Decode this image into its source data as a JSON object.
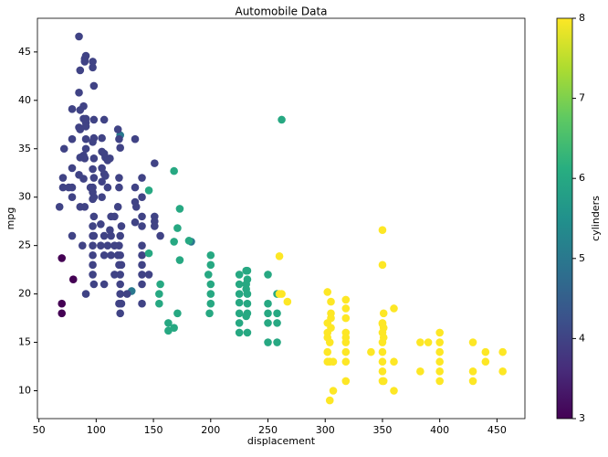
{
  "chart_data": {
    "type": "scatter",
    "title": "Automobile Data",
    "x_label": "displacement",
    "y_label": "mpg",
    "colorbar_label": "cylinders",
    "colormap": "viridis",
    "xlim": [
      48.7,
      474.4
    ],
    "xticks": [
      50,
      100,
      150,
      200,
      250,
      300,
      350,
      400,
      450
    ],
    "ylim": [
      7.12,
      48.48
    ],
    "yticks": [
      10,
      15,
      20,
      25,
      30,
      35,
      40,
      45
    ],
    "clim": [
      3,
      8
    ],
    "cticks": [
      3,
      4,
      5,
      6,
      7,
      8
    ],
    "x": [
      70,
      70,
      80,
      70,
      121,
      131,
      183,
      85,
      91,
      90,
      90,
      97,
      97,
      86,
      98,
      85,
      89,
      79,
      86,
      91,
      89,
      98,
      107,
      91,
      91,
      85,
      119,
      86,
      105,
      120,
      98,
      134,
      91,
      79,
      97,
      72,
      91,
      121,
      105,
      107,
      89,
      108,
      86,
      90,
      98,
      112,
      110,
      151,
      79,
      105,
      97,
      107,
      85,
      98,
      120,
      71,
      140,
      89,
      105,
      71,
      79,
      76,
      97,
      110,
      120,
      134,
      97,
      98,
      79,
      105,
      140,
      151,
      97,
      135,
      86,
      68,
      113,
      116,
      98,
      140,
      151,
      122,
      97,
      140,
      113,
      97,
      79,
      121,
      98,
      156,
      107,
      120,
      97,
      110,
      116,
      140,
      88,
      104,
      121,
      113,
      97,
      107,
      140,
      119,
      140,
      97,
      120,
      122,
      116,
      121,
      140,
      146,
      97,
      98,
      121,
      107,
      140,
      91,
      121,
      120,
      122,
      121,
      140,
      151,
      104,
      112,
      134,
      134,
      119,
      90,
      95,
      108,
      127,
      262,
      168,
      146,
      173,
      171,
      181,
      173,
      200,
      146,
      168,
      225,
      231,
      232,
      200,
      250,
      200,
      198,
      225,
      231,
      232,
      250,
      250,
      258,
      225,
      232,
      200,
      200,
      199,
      225,
      231,
      258,
      250,
      232,
      250,
      258,
      225,
      171,
      156,
      163,
      163,
      168,
      155,
      155,
      231,
      225,
      258,
      232,
      225,
      232,
      260,
      350,
      350,
      267,
      262,
      260,
      302,
      305,
      318,
      318,
      351,
      305,
      360,
      302,
      318,
      350,
      351,
      302,
      318,
      350,
      400,
      304,
      318,
      350,
      383,
      390,
      429,
      400,
      302,
      318,
      340,
      350,
      400,
      440,
      455,
      302,
      304,
      318,
      350,
      360,
      400,
      440,
      307,
      360,
      304,
      307,
      318,
      350,
      351,
      383,
      400,
      429,
      455,
      350,
      400,
      429,
      305,
      302,
      318,
      351,
      305,
      350
    ],
    "y": [
      18,
      19,
      21.5,
      23.7,
      36.4,
      20.3,
      25.4,
      46.6,
      44.6,
      44.3,
      44,
      44,
      43.4,
      43.1,
      41.5,
      40.8,
      39.4,
      39.1,
      39,
      38.1,
      38.1,
      38,
      38,
      37.7,
      37.3,
      37.2,
      37,
      37,
      36.1,
      36,
      36.1,
      36,
      36,
      36,
      35.7,
      35,
      35,
      35.1,
      34.7,
      34.5,
      34.3,
      34.1,
      34.1,
      34,
      34,
      34,
      33.8,
      33.5,
      33,
      33,
      32.9,
      32.4,
      32.3,
      32,
      32,
      32,
      32,
      31.9,
      31.6,
      31,
      31,
      31,
      31,
      31,
      31,
      31,
      30.5,
      30,
      30,
      30,
      30,
      28,
      29.8,
      29,
      29,
      29,
      28,
      28,
      28,
      28,
      27.5,
      27,
      27,
      27,
      26,
      26,
      26,
      26,
      26,
      26,
      26,
      25,
      25,
      25,
      25,
      25,
      25,
      25,
      24,
      24,
      24,
      24,
      24,
      24,
      23,
      23,
      23,
      23,
      22,
      22,
      22,
      22,
      22,
      21,
      21,
      21,
      21,
      20,
      20,
      19,
      19,
      18,
      19,
      27,
      27.2,
      26.6,
      29.5,
      27.4,
      29,
      29,
      31,
      32.2,
      20,
      38,
      32.7,
      30.7,
      28.8,
      26.8,
      25.5,
      23.5,
      24,
      24.2,
      25.4,
      22,
      22.4,
      22.4,
      23,
      22,
      21,
      22,
      20,
      21,
      21.5,
      19,
      18,
      18,
      18,
      19,
      20,
      19,
      18,
      17,
      17.7,
      17,
      17,
      16,
      15,
      15,
      16,
      18,
      21,
      17,
      16.2,
      16.5,
      19,
      20,
      20.5,
      19.1,
      20,
      20,
      21,
      18,
      23.9,
      26.6,
      23,
      19.2,
      20,
      20,
      20.2,
      19.2,
      19.4,
      18.5,
      18,
      18,
      18.5,
      17,
      17.5,
      17,
      16.5,
      16,
      16,
      16,
      16,
      15,
      15,
      15,
      15,
      15,
      15,
      15,
      14,
      14,
      14,
      14,
      14,
      14,
      14,
      13,
      13,
      13,
      13,
      13,
      13,
      13,
      10,
      10,
      9,
      13,
      11,
      12,
      11,
      12,
      12,
      12,
      12,
      11,
      11,
      11,
      17.5,
      15.5,
      15.5,
      15.5,
      16.5,
      16.9
    ],
    "c": [
      3,
      3,
      3,
      3,
      5,
      5,
      5,
      4,
      4,
      4,
      4,
      4,
      4,
      4,
      4,
      4,
      4,
      4,
      4,
      4,
      4,
      4,
      4,
      4,
      4,
      4,
      4,
      4,
      4,
      4,
      4,
      4,
      4,
      4,
      4,
      4,
      4,
      4,
      4,
      4,
      4,
      4,
      4,
      4,
      4,
      4,
      4,
      4,
      4,
      4,
      4,
      4,
      4,
      4,
      4,
      4,
      4,
      4,
      4,
      4,
      4,
      4,
      4,
      4,
      4,
      4,
      4,
      4,
      4,
      4,
      4,
      4,
      4,
      4,
      4,
      4,
      4,
      4,
      4,
      4,
      4,
      4,
      4,
      4,
      4,
      4,
      4,
      4,
      4,
      4,
      4,
      4,
      4,
      4,
      4,
      4,
      4,
      4,
      4,
      4,
      4,
      4,
      4,
      4,
      4,
      4,
      4,
      4,
      4,
      4,
      4,
      4,
      4,
      4,
      4,
      4,
      4,
      4,
      4,
      4,
      4,
      4,
      4,
      4,
      4,
      4,
      4,
      4,
      4,
      4,
      4,
      4,
      4,
      6,
      6,
      6,
      6,
      6,
      6,
      6,
      6,
      6,
      6,
      6,
      6,
      6,
      6,
      6,
      6,
      6,
      6,
      6,
      6,
      6,
      6,
      6,
      6,
      6,
      6,
      6,
      6,
      6,
      6,
      6,
      6,
      6,
      6,
      6,
      6,
      6,
      6,
      6,
      6,
      6,
      6,
      6,
      6,
      6,
      6,
      6,
      6,
      6,
      8,
      8,
      8,
      8,
      8,
      8,
      8,
      8,
      8,
      8,
      8,
      8,
      8,
      8,
      8,
      8,
      8,
      8,
      8,
      8,
      8,
      8,
      8,
      8,
      8,
      8,
      8,
      8,
      8,
      8,
      8,
      8,
      8,
      8,
      8,
      8,
      8,
      8,
      8,
      8,
      8,
      8,
      8,
      8,
      8,
      8,
      8,
      8,
      8,
      8,
      8,
      8,
      8,
      8,
      8,
      8,
      8,
      8,
      8,
      8,
      8,
      8
    ]
  }
}
